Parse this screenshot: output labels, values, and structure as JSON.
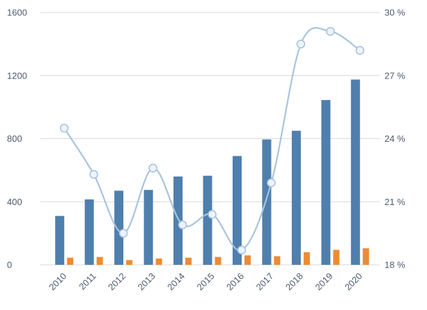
{
  "colors": {
    "bar_primary": "#4f7fad",
    "bar_secondary": "#ed8b33",
    "line": "#a9c3de",
    "marker_fill": "#eef3fa",
    "grid": "#d9d9d9",
    "axis_text": "#4d5b6e",
    "background": "#ffffff"
  },
  "chart_data": {
    "type": "combo-bar-line",
    "title": "",
    "legend": false,
    "grid": true,
    "categories": [
      "2010",
      "2011",
      "2012",
      "2013",
      "2014",
      "2015",
      "2016",
      "2017",
      "2018",
      "2019",
      "2020"
    ],
    "series": [
      {
        "name": "primary-bars",
        "type": "bar",
        "axis": "left",
        "color_key": "bar_primary",
        "values": [
          310,
          415,
          470,
          475,
          560,
          565,
          690,
          795,
          850,
          1045,
          1175
        ]
      },
      {
        "name": "secondary-bars",
        "type": "bar",
        "axis": "left",
        "color_key": "bar_secondary",
        "values": [
          45,
          50,
          30,
          40,
          45,
          50,
          60,
          55,
          80,
          95,
          105
        ]
      },
      {
        "name": "percent-line",
        "type": "line",
        "axis": "right",
        "color_key": "line",
        "values": [
          24.5,
          22.3,
          19.5,
          22.6,
          19.9,
          20.4,
          18.7,
          21.9,
          28.5,
          29.1,
          28.2
        ]
      }
    ],
    "left_axis": {
      "min": 0,
      "max": 1600,
      "tick_values": [
        0,
        400,
        800,
        1200,
        1600
      ],
      "tick_labels": [
        "0",
        "400",
        "800",
        "1200",
        "1600"
      ]
    },
    "right_axis": {
      "min": 18,
      "max": 30,
      "tick_values": [
        18,
        21,
        24,
        27,
        30
      ],
      "tick_labels": [
        "18 %",
        "21 %",
        "24 %",
        "27 %",
        "30 %"
      ]
    }
  }
}
